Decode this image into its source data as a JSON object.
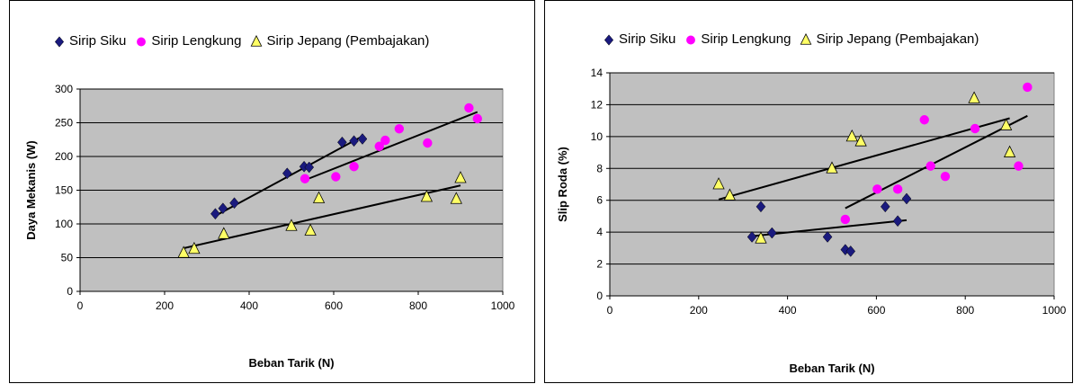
{
  "chart_data": [
    {
      "type": "scatter",
      "xlabel": "Beban Tarik (N)",
      "ylabel": "Daya Mekanis (W)",
      "xlim": [
        0,
        1000
      ],
      "ylim": [
        0,
        300
      ],
      "xticks": [
        "0",
        "200",
        "400",
        "600",
        "800",
        "1000"
      ],
      "yticks": [
        "0",
        "50",
        "100",
        "150",
        "200",
        "250",
        "300"
      ],
      "grid": true,
      "legend_position": "top",
      "series": [
        {
          "name": "Sirip Siku",
          "marker": "diamond",
          "color": "#1a1a7e",
          "points": [
            [
              320,
              115
            ],
            [
              338,
              123
            ],
            [
              365,
              131
            ],
            [
              490,
              175
            ],
            [
              530,
              185
            ],
            [
              542,
              184
            ],
            [
              620,
              221
            ],
            [
              648,
              223
            ],
            [
              668,
              226
            ]
          ],
          "trend": [
            [
              320,
              112
            ],
            [
              668,
              230
            ]
          ]
        },
        {
          "name": "Sirip Lengkung",
          "marker": "circle",
          "color": "#ff00ff",
          "points": [
            [
              532,
              167
            ],
            [
              605,
              170
            ],
            [
              648,
              185
            ],
            [
              708,
              215
            ],
            [
              722,
              224
            ],
            [
              755,
              241
            ],
            [
              822,
              220
            ],
            [
              920,
              272
            ],
            [
              940,
              256
            ]
          ],
          "trend": [
            [
              532,
              165
            ],
            [
              940,
              266
            ]
          ]
        },
        {
          "name": "Sirip Jepang (Pembajakan)",
          "marker": "triangle",
          "color": "#ffff66",
          "points": [
            [
              245,
              57
            ],
            [
              270,
              63
            ],
            [
              340,
              85
            ],
            [
              500,
              97
            ],
            [
              545,
              90
            ],
            [
              565,
              138
            ],
            [
              820,
              140
            ],
            [
              890,
              137
            ],
            [
              900,
              168
            ]
          ],
          "trend": [
            [
              245,
              64
            ],
            [
              900,
              157
            ]
          ]
        }
      ]
    },
    {
      "type": "scatter",
      "xlabel": "Beban Tarik (N)",
      "ylabel": "Slip Roda (%)",
      "xlim": [
        0,
        1000
      ],
      "ylim": [
        0,
        14
      ],
      "xticks": [
        "0",
        "200",
        "400",
        "600",
        "800",
        "1000"
      ],
      "yticks": [
        "0",
        "2",
        "4",
        "6",
        "8",
        "10",
        "12",
        "14"
      ],
      "grid": true,
      "legend_position": "top",
      "series": [
        {
          "name": "Sirip Siku",
          "marker": "diamond",
          "color": "#1a1a7e",
          "points": [
            [
              320,
              3.7
            ],
            [
              340,
              5.6
            ],
            [
              365,
              3.95
            ],
            [
              490,
              3.7
            ],
            [
              530,
              2.9
            ],
            [
              542,
              2.8
            ],
            [
              620,
              5.6
            ],
            [
              648,
              4.7
            ],
            [
              668,
              6.1
            ]
          ],
          "trend": [
            [
              320,
              3.75
            ],
            [
              668,
              4.75
            ]
          ]
        },
        {
          "name": "Sirip Lengkung",
          "marker": "circle",
          "color": "#ff00ff",
          "points": [
            [
              530,
              4.8
            ],
            [
              602,
              6.7
            ],
            [
              648,
              6.7
            ],
            [
              708,
              11.05
            ],
            [
              722,
              8.15
            ],
            [
              755,
              7.5
            ],
            [
              822,
              10.5
            ],
            [
              920,
              8.15
            ],
            [
              940,
              13.1
            ]
          ],
          "trend": [
            [
              530,
              5.5
            ],
            [
              940,
              11.3
            ]
          ]
        },
        {
          "name": "Sirip Jepang (Pembajakan)",
          "marker": "triangle",
          "color": "#ffff66",
          "points": [
            [
              245,
              7.0
            ],
            [
              270,
              6.3
            ],
            [
              340,
              3.6
            ],
            [
              500,
              8.0
            ],
            [
              545,
              10.0
            ],
            [
              565,
              9.7
            ],
            [
              820,
              12.4
            ],
            [
              892,
              10.7
            ],
            [
              900,
              9.0
            ]
          ],
          "trend": [
            [
              245,
              6.05
            ],
            [
              900,
              11.15
            ]
          ]
        }
      ]
    }
  ]
}
